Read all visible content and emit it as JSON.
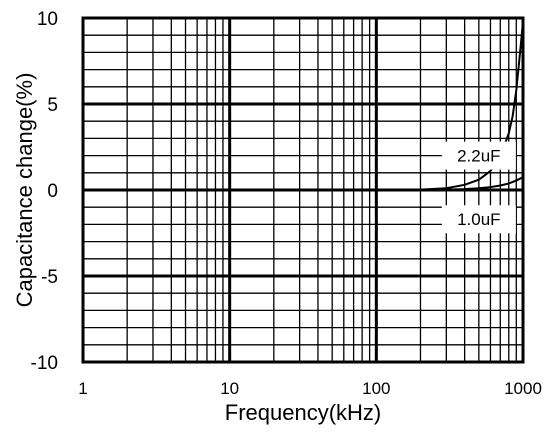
{
  "chart_data": {
    "type": "line",
    "title": "",
    "xlabel": "Frequency(kHz)",
    "ylabel": "Capacitance change(%)",
    "x_scale": "log",
    "xlim": [
      1,
      1000
    ],
    "ylim": [
      -10,
      10
    ],
    "x_ticks": [
      "1",
      "10",
      "100",
      "1000"
    ],
    "y_ticks": [
      "10",
      "5",
      "0",
      "-5",
      "-10"
    ],
    "grid": true,
    "series": [
      {
        "name": "2.2uF",
        "x": [
          1,
          10,
          100,
          200,
          300,
          400,
          500,
          600,
          700,
          800,
          850,
          900,
          930,
          960,
          1000
        ],
        "y": [
          0,
          0,
          0,
          0.02,
          0.1,
          0.3,
          0.6,
          1.1,
          1.9,
          3.3,
          4.3,
          5.8,
          7.0,
          8.2,
          9.8
        ]
      },
      {
        "name": "1.0uF",
        "x": [
          1,
          10,
          100,
          200,
          300,
          400,
          500,
          600,
          700,
          800,
          900,
          1000
        ],
        "y": [
          0,
          0,
          0,
          0,
          0.02,
          0.05,
          0.1,
          0.17,
          0.26,
          0.38,
          0.55,
          0.75
        ]
      }
    ]
  }
}
